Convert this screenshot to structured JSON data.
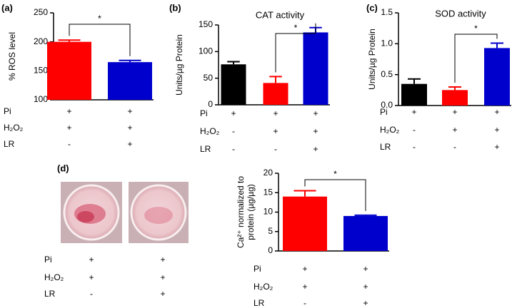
{
  "chart_data": [
    {
      "type": "bar",
      "panel_label": "(a)",
      "ylabel": [
        "% ROS level"
      ],
      "values": [
        200,
        165
      ],
      "errors": [
        3,
        3
      ],
      "colors": [
        "#ff0000",
        "#0000cc"
      ],
      "ylim": [
        100,
        250
      ],
      "yticks": [
        100,
        150,
        200,
        250
      ],
      "significance": "*",
      "conditions": [
        {
          "label": "Pi",
          "signs": [
            "+",
            "+"
          ]
        },
        {
          "label": "H₂O₂",
          "signs": [
            "+",
            "+"
          ]
        },
        {
          "label": "LR",
          "signs": [
            "-",
            "+"
          ]
        }
      ]
    },
    {
      "type": "bar",
      "panel_label": "(b)",
      "title": "CAT activity",
      "ylabel": [
        "Units/µg Protein"
      ],
      "values": [
        76,
        41,
        136
      ],
      "errors": [
        5,
        12,
        9
      ],
      "colors": [
        "#000000",
        "#ff0000",
        "#0000cc"
      ],
      "ylim": [
        0,
        150
      ],
      "yticks": [
        0,
        50,
        100,
        150
      ],
      "significance": "*",
      "conditions": [
        {
          "label": "Pi",
          "signs": [
            "+",
            "+",
            "+"
          ]
        },
        {
          "label": "H₂O₂",
          "signs": [
            "-",
            "+",
            "+"
          ]
        },
        {
          "label": "LR",
          "signs": [
            "-",
            "-",
            "+"
          ]
        }
      ]
    },
    {
      "type": "bar",
      "panel_label": "(c)",
      "title": "SOD activity",
      "ylabel": [
        "Units/µg Protein"
      ],
      "values": [
        0.35,
        0.25,
        0.93
      ],
      "errors": [
        0.08,
        0.05,
        0.08
      ],
      "colors": [
        "#000000",
        "#ff0000",
        "#0000cc"
      ],
      "ylim": [
        0,
        1.5
      ],
      "yticks": [
        {
          "value": 0,
          "label": "0.0"
        },
        {
          "value": 0.5,
          "label": "0.5"
        },
        {
          "value": 1,
          "label": "1.0"
        },
        1.5
      ],
      "significance": "*",
      "conditions": [
        {
          "label": "Pi",
          "signs": [
            "+",
            "+",
            "+"
          ]
        },
        {
          "label": "H₂O₂",
          "signs": [
            "-",
            "+",
            "+"
          ]
        },
        {
          "label": "LR",
          "signs": [
            "-",
            "-",
            "+"
          ]
        }
      ]
    },
    {
      "type": "bar",
      "ylabel": [
        "Ca²⁺ normalized to",
        "protein (µg/µg)"
      ],
      "values": [
        14,
        9
      ],
      "errors": [
        1.5,
        0.2
      ],
      "colors": [
        "#ff0000",
        "#0000cc"
      ],
      "ylim": [
        0,
        20
      ],
      "yticks": [
        0,
        5,
        10,
        15,
        20
      ],
      "significance": "*",
      "conditions": [
        {
          "label": "Pi",
          "signs": [
            "+",
            "+"
          ]
        },
        {
          "label": "H₂O₂",
          "signs": [
            "+",
            "+"
          ]
        },
        {
          "label": "LR",
          "signs": [
            "-",
            "+"
          ]
        }
      ]
    }
  ],
  "image_panel": {
    "panel_label": "(d)",
    "conditions": [
      {
        "label": "Pi",
        "signs": [
          "+",
          "+"
        ]
      },
      {
        "label": "H₂O₂",
        "signs": [
          "+",
          "+"
        ]
      },
      {
        "label": "LR",
        "signs": [
          "-",
          "+"
        ]
      }
    ]
  }
}
